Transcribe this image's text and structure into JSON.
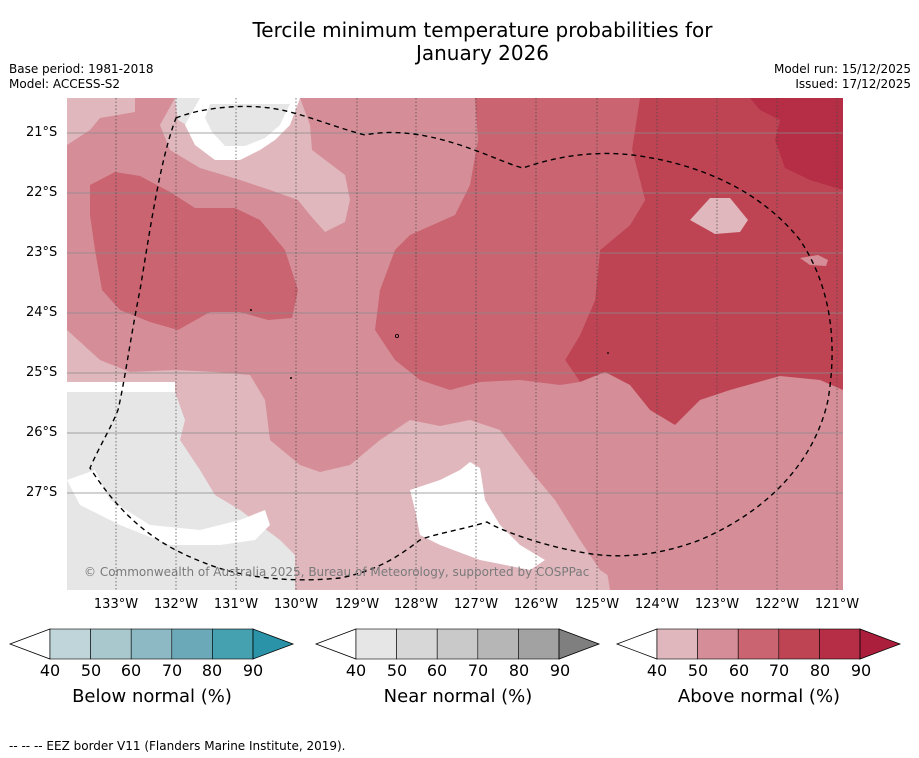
{
  "title": {
    "line1": "Tercile minimum temperature probabilities for",
    "line2": "January 2026"
  },
  "meta": {
    "base_period": "Base period: 1981-2018",
    "model": "Model: ACCESS-S2",
    "model_run": "Model run: 15/12/2025",
    "issued": "Issued: 17/12/2025"
  },
  "map": {
    "latitude_labels": [
      "21°S",
      "22°S",
      "23°S",
      "24°S",
      "25°S",
      "26°S",
      "27°S"
    ],
    "longitude_labels": [
      "133°W",
      "132°W",
      "131°W",
      "130°W",
      "129°W",
      "128°W",
      "127°W",
      "126°W",
      "125°W",
      "124°W",
      "123°W",
      "122°W",
      "121°W"
    ],
    "copyright": "© Commonwealth of Australia 2025, Bureau of Meteorology, supported by COSPPac",
    "colors": {
      "land": "#ffffff",
      "below_50": "#e6e6e6",
      "above_40": "#e0b7bd",
      "above_50": "#d58e98",
      "above_60": "#c96470",
      "above_70": "#bf4453",
      "above_80": "#b52e46"
    }
  },
  "colorbars": [
    {
      "title": "Below normal (%)",
      "ticks": [
        "40",
        "50",
        "60",
        "70",
        "80",
        "90"
      ],
      "colors": [
        "#ffffff",
        "#bfd5da",
        "#a9c8cd",
        "#8cb9c3",
        "#6ca9b8",
        "#45a0b0",
        "#2a93a8"
      ]
    },
    {
      "title": "Near normal (%)",
      "ticks": [
        "40",
        "50",
        "60",
        "70",
        "80",
        "90"
      ],
      "colors": [
        "#ffffff",
        "#e6e6e6",
        "#d7d7d7",
        "#c9c9c9",
        "#b6b6b6",
        "#a2a2a2",
        "#7f7f7f"
      ]
    },
    {
      "title": "Above normal (%)",
      "ticks": [
        "40",
        "50",
        "60",
        "70",
        "80",
        "90"
      ],
      "colors": [
        "#ffffff",
        "#e0b7bd",
        "#d58e98",
        "#c96470",
        "#bf4453",
        "#b52e46",
        "#ab1f3d"
      ]
    }
  ],
  "footer": {
    "eez_legend": "--  --  -- EEZ border V11 (Flanders Marine Institute, 2019)."
  }
}
